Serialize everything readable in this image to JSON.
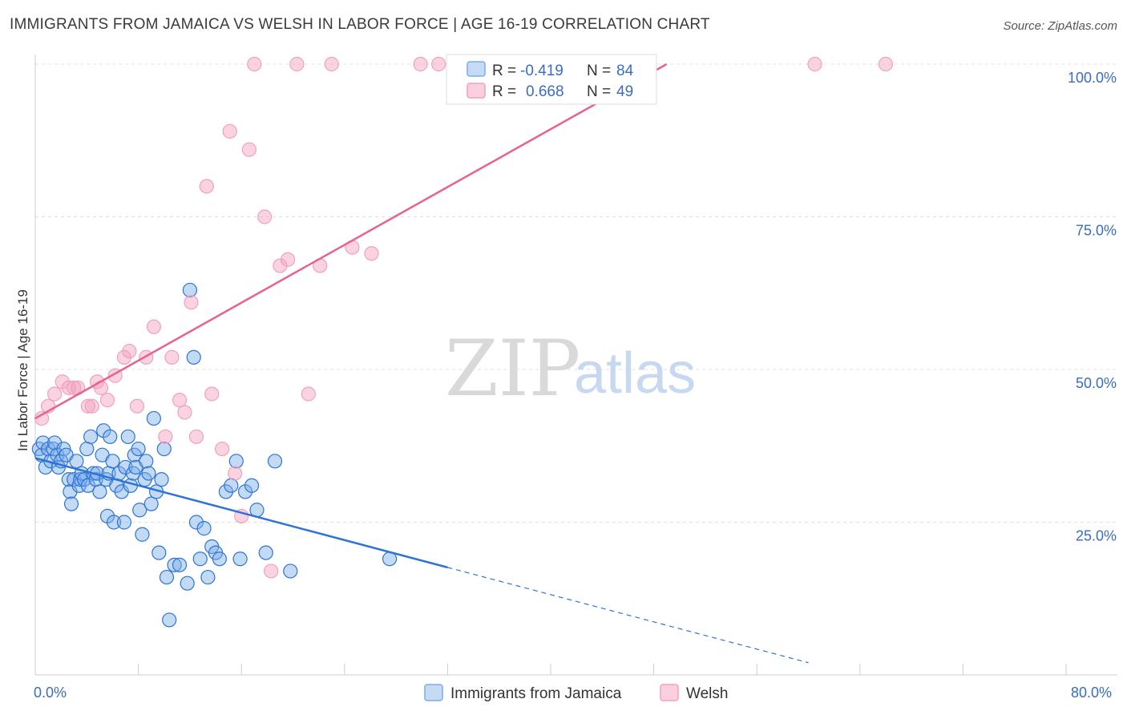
{
  "header": {
    "title": "IMMIGRANTS FROM JAMAICA VS WELSH IN LABOR FORCE | AGE 16-19 CORRELATION CHART",
    "source": "Source: ZipAtlas.com"
  },
  "legend": {
    "r_label": "R =",
    "n_label": "N =",
    "series1_r": "-0.419",
    "series1_n": "84",
    "series2_r": "0.668",
    "series2_n": "49"
  },
  "watermark": {
    "zip": "ZIP",
    "atlas": "atlas"
  },
  "bottom_legend": {
    "series1": "Immigrants from Jamaica",
    "series2": "Welsh"
  },
  "chart_data": {
    "type": "scatter",
    "title": "IMMIGRANTS FROM JAMAICA VS WELSH IN LABOR FORCE | AGE 16-19 CORRELATION CHART",
    "ylabel": "In Labor Force | Age 16-19",
    "xlim": [
      0,
      80
    ],
    "ylim": [
      0,
      100
    ],
    "x_tick_labels": [
      "0.0%",
      "80.0%"
    ],
    "y_ticks": [
      25,
      50,
      75,
      100
    ],
    "y_tick_labels": [
      "25.0%",
      "50.0%",
      "75.0%",
      "100.0%"
    ],
    "grid": true,
    "legend_position": "top-center",
    "colors": {
      "series1": "#7aaee8",
      "series1_line": "#2e74d4",
      "series2": "#f2a0bb",
      "series2_line": "#e8628c"
    },
    "series": [
      {
        "name": "Immigrants from Jamaica",
        "r": -0.419,
        "n": 84,
        "trend": {
          "x0": 0,
          "y0": 35.5,
          "x1": 32,
          "y1": 17.6,
          "dashed_to_x": 60,
          "dashed_to_y": 2
        },
        "points": [
          [
            0.3,
            37
          ],
          [
            0.5,
            36
          ],
          [
            0.6,
            38
          ],
          [
            0.8,
            34
          ],
          [
            1.0,
            37
          ],
          [
            1.2,
            35
          ],
          [
            1.4,
            37
          ],
          [
            1.5,
            38
          ],
          [
            1.7,
            36
          ],
          [
            1.8,
            34
          ],
          [
            2.0,
            35
          ],
          [
            2.2,
            37
          ],
          [
            2.4,
            36
          ],
          [
            2.6,
            32
          ],
          [
            2.7,
            30
          ],
          [
            2.8,
            28
          ],
          [
            3.0,
            32
          ],
          [
            3.2,
            35
          ],
          [
            3.4,
            31
          ],
          [
            3.5,
            32
          ],
          [
            3.6,
            33
          ],
          [
            3.8,
            32
          ],
          [
            4.0,
            37
          ],
          [
            4.1,
            31
          ],
          [
            4.3,
            39
          ],
          [
            4.5,
            33
          ],
          [
            4.7,
            32
          ],
          [
            4.8,
            33
          ],
          [
            5.0,
            30
          ],
          [
            5.2,
            36
          ],
          [
            5.3,
            40
          ],
          [
            5.5,
            32
          ],
          [
            5.6,
            26
          ],
          [
            5.7,
            33
          ],
          [
            5.8,
            39
          ],
          [
            6.0,
            35
          ],
          [
            6.1,
            25
          ],
          [
            6.3,
            31
          ],
          [
            6.5,
            33
          ],
          [
            6.7,
            30
          ],
          [
            6.9,
            25
          ],
          [
            7.0,
            34
          ],
          [
            7.2,
            39
          ],
          [
            7.4,
            31
          ],
          [
            7.6,
            33
          ],
          [
            7.7,
            36
          ],
          [
            7.8,
            34
          ],
          [
            8.0,
            37
          ],
          [
            8.1,
            27
          ],
          [
            8.3,
            23
          ],
          [
            8.5,
            32
          ],
          [
            8.6,
            35
          ],
          [
            8.8,
            33
          ],
          [
            9.0,
            28
          ],
          [
            9.2,
            42
          ],
          [
            9.4,
            30
          ],
          [
            9.6,
            20
          ],
          [
            9.8,
            32
          ],
          [
            10.0,
            37
          ],
          [
            10.2,
            16
          ],
          [
            10.4,
            9
          ],
          [
            10.8,
            18
          ],
          [
            11.2,
            18
          ],
          [
            11.8,
            15
          ],
          [
            12.0,
            63
          ],
          [
            12.3,
            52
          ],
          [
            12.5,
            25
          ],
          [
            12.8,
            19
          ],
          [
            13.1,
            24
          ],
          [
            13.4,
            16
          ],
          [
            13.7,
            21
          ],
          [
            14.0,
            20
          ],
          [
            14.3,
            19
          ],
          [
            14.8,
            30
          ],
          [
            15.2,
            31
          ],
          [
            15.6,
            35
          ],
          [
            15.9,
            19
          ],
          [
            16.3,
            30
          ],
          [
            16.8,
            31
          ],
          [
            17.2,
            27
          ],
          [
            17.9,
            20
          ],
          [
            18.6,
            35
          ],
          [
            19.8,
            17
          ],
          [
            27.5,
            19
          ]
        ]
      },
      {
        "name": "Welsh",
        "r": 0.668,
        "n": 49,
        "trend": {
          "x0": 0,
          "y0": 42,
          "x1": 49,
          "y1": 100
        },
        "points": [
          [
            0.5,
            42
          ],
          [
            1.0,
            44
          ],
          [
            1.5,
            46
          ],
          [
            2.1,
            48
          ],
          [
            2.6,
            47
          ],
          [
            3.0,
            47
          ],
          [
            3.3,
            47
          ],
          [
            4.1,
            44
          ],
          [
            4.4,
            44
          ],
          [
            4.8,
            48
          ],
          [
            5.1,
            47
          ],
          [
            5.6,
            45
          ],
          [
            6.2,
            49
          ],
          [
            6.9,
            52
          ],
          [
            7.3,
            53
          ],
          [
            7.9,
            44
          ],
          [
            8.6,
            52
          ],
          [
            9.2,
            57
          ],
          [
            10.1,
            39
          ],
          [
            10.6,
            52
          ],
          [
            11.2,
            45
          ],
          [
            11.6,
            43
          ],
          [
            12.1,
            61
          ],
          [
            12.5,
            39
          ],
          [
            13.3,
            80
          ],
          [
            13.7,
            46
          ],
          [
            14.5,
            37
          ],
          [
            15.1,
            89
          ],
          [
            15.5,
            33
          ],
          [
            16.0,
            26
          ],
          [
            16.6,
            86
          ],
          [
            17.0,
            100
          ],
          [
            17.8,
            75
          ],
          [
            18.3,
            17
          ],
          [
            19.0,
            67
          ],
          [
            19.6,
            68
          ],
          [
            20.3,
            100
          ],
          [
            21.2,
            46
          ],
          [
            22.1,
            67
          ],
          [
            23.0,
            100
          ],
          [
            24.6,
            70
          ],
          [
            26.1,
            69
          ],
          [
            29.9,
            100
          ],
          [
            31.3,
            100
          ],
          [
            35.5,
            100
          ],
          [
            38.4,
            100
          ],
          [
            43.7,
            100
          ],
          [
            60.5,
            100
          ],
          [
            66.0,
            100
          ]
        ]
      }
    ]
  }
}
